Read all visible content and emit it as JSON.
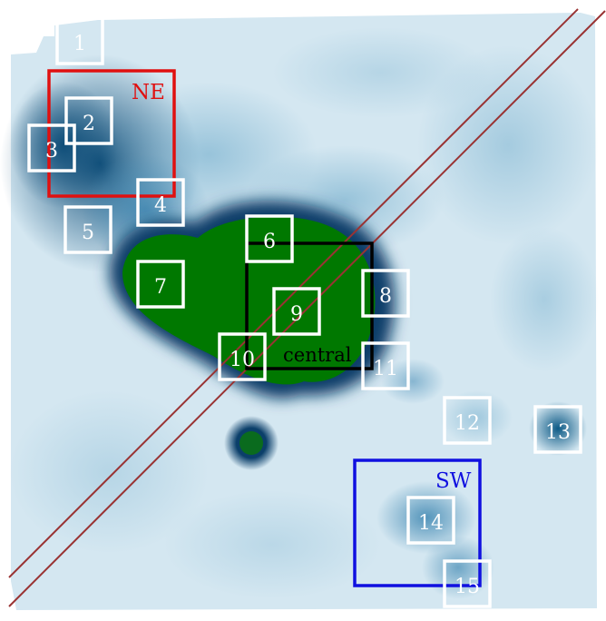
{
  "image": {
    "kind": "false-color astronomical map with region overlays",
    "colors": {
      "background": "#ffffff",
      "map_light": "#d7e9f2",
      "map_mid": "#7fb3cf",
      "map_dark": "#0b4f7a",
      "map_deepest": "#062e52",
      "saturated_core": "#007a00",
      "region_box": "#ffffff",
      "ne_box": "#e01010",
      "sw_box": "#1010e0",
      "central_box": "#000000",
      "slit_lines": "#993333"
    }
  },
  "labels": {
    "ne": "NE",
    "sw": "SW",
    "central": "central"
  },
  "regions": [
    {
      "id": "1",
      "label": "1"
    },
    {
      "id": "2",
      "label": "2"
    },
    {
      "id": "3",
      "label": "3"
    },
    {
      "id": "4",
      "label": "4"
    },
    {
      "id": "5",
      "label": "5"
    },
    {
      "id": "6",
      "label": "6"
    },
    {
      "id": "7",
      "label": "7"
    },
    {
      "id": "8",
      "label": "8"
    },
    {
      "id": "9",
      "label": "9"
    },
    {
      "id": "10",
      "label": "10"
    },
    {
      "id": "11",
      "label": "11"
    },
    {
      "id": "12",
      "label": "12"
    },
    {
      "id": "13",
      "label": "13"
    },
    {
      "id": "14",
      "label": "14"
    },
    {
      "id": "15",
      "label": "15"
    }
  ]
}
